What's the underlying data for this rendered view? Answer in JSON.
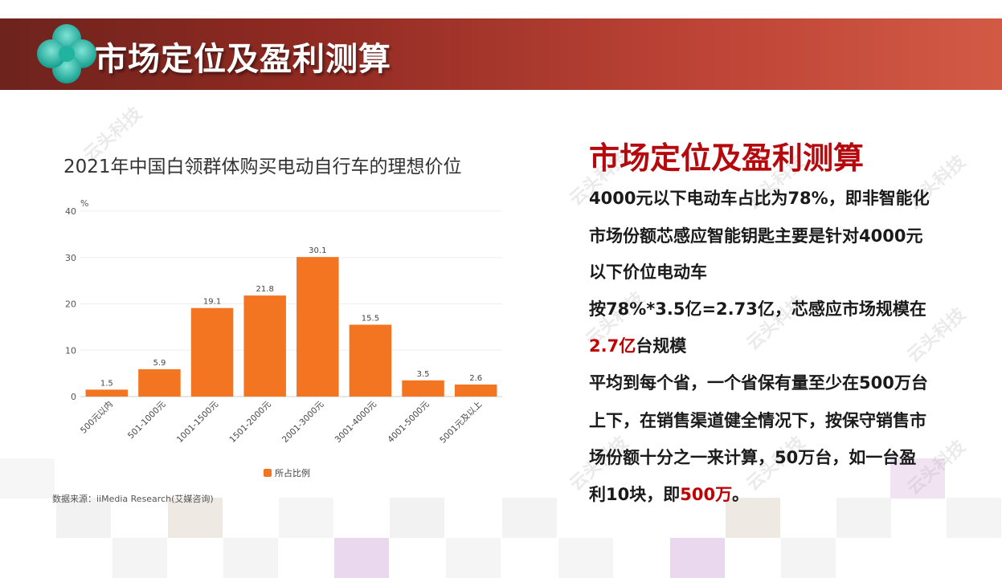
{
  "banner": {
    "title": "市场定位及盈利测算"
  },
  "chart_data": {
    "type": "bar",
    "title": "2021年中国白领群体购买电动自行车的理想价位",
    "ylabel": "%",
    "ylim": [
      0,
      40
    ],
    "yticks": [
      0,
      10,
      20,
      30,
      40
    ],
    "categories": [
      "500元以内",
      "501-1000元",
      "1001-1500元",
      "1501-2000元",
      "2001-3000元",
      "3001-4000元",
      "4001-5000元",
      "5001元及以上"
    ],
    "series": [
      {
        "name": "所占比例",
        "values": [
          1.5,
          5.9,
          19.1,
          21.8,
          30.1,
          15.5,
          3.5,
          2.6
        ],
        "color": "#f47521"
      }
    ],
    "legend": "bottom-center",
    "grid": true
  },
  "chart": {
    "value_labels": [
      "1.5",
      "5.9",
      "19.1",
      "21.8",
      "30.1",
      "15.5",
      "3.5",
      "2.6"
    ],
    "ytick_labels": [
      "0",
      "10",
      "20",
      "30",
      "40"
    ],
    "legend_label": "所占比例",
    "source": "数据来源：iiMedia Research(艾媒咨询)"
  },
  "right": {
    "heading": "市场定位及盈利测算",
    "line1": "4000元以下电动车占比为78%，即非智能化",
    "line2": "市场份额芯感应智能钥匙主要是针对4000元",
    "line3": "以下价位电动车",
    "line4": "按78%*3.5亿=2.73亿，芯感应市场规模在",
    "line5_highlight": "2.7亿",
    "line5_rest": "台规模",
    "line6": "平均到每个省，一个省保有量至少在500万台",
    "line7": "上下，在销售渠道健全情况下，按保守销售市",
    "line8": "场份额十分之一来计算，50万台，如一台盈",
    "line9_prefix": "利10块，即",
    "line9_highlight": "500万",
    "line9_suffix": "。"
  },
  "watermark": {
    "text": "云头科技"
  },
  "colors": {
    "accent_red": "#c00000",
    "bar": "#f47521",
    "banner_dark": "#6e231d",
    "banner_light": "#d25a45"
  }
}
